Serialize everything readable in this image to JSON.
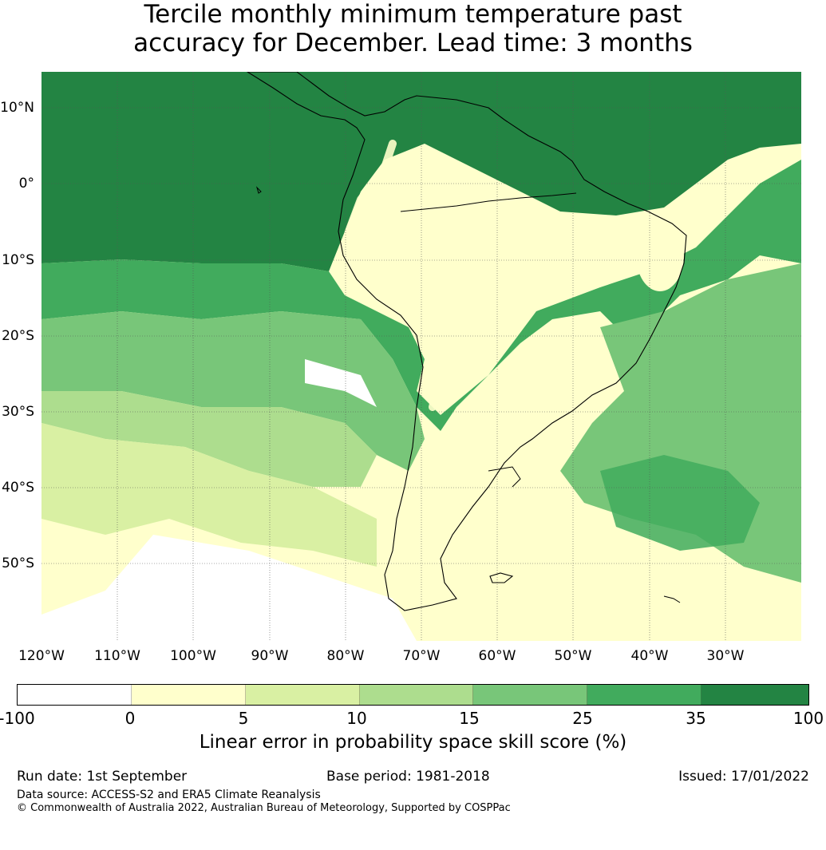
{
  "title": {
    "line1": "Tercile monthly minimum temperature past",
    "line2": "accuracy for December. Lead time: 3 months"
  },
  "map": {
    "region": "South America",
    "lat_labels": [
      "10°N",
      "0°",
      "10°S",
      "20°S",
      "30°S",
      "40°S",
      "50°S"
    ],
    "lon_labels": [
      "120°W",
      "110°W",
      "100°W",
      "90°W",
      "80°W",
      "70°W",
      "60°W",
      "50°W",
      "40°W",
      "30°W"
    ],
    "colors": {
      "lt0": "#ffffff",
      "c0_5": "#ffffcc",
      "c5_10": "#d9f0a3",
      "c10_15": "#addd8e",
      "c15_25": "#78c679",
      "c25_35": "#41ab5d",
      "c35_100": "#238443"
    }
  },
  "colorbar": {
    "ticks": [
      "-100",
      "0",
      "5",
      "10",
      "15",
      "25",
      "35",
      "100"
    ],
    "colors": [
      "#ffffff",
      "#ffffcc",
      "#d9f0a3",
      "#addd8e",
      "#78c679",
      "#41ab5d",
      "#238443"
    ],
    "label": "Linear error in probability space skill score (%)"
  },
  "footer": {
    "run_date": "Run date: 1st September",
    "base_period": "Base period: 1981-2018",
    "issued": "Issued: 17/01/2022",
    "data_source": "Data source: ACCESS-S2 and ERA5 Climate Reanalysis",
    "copyright": "© Commonwealth of Australia 2022, Australian Bureau of Meteorology, Supported by COSPPac"
  }
}
